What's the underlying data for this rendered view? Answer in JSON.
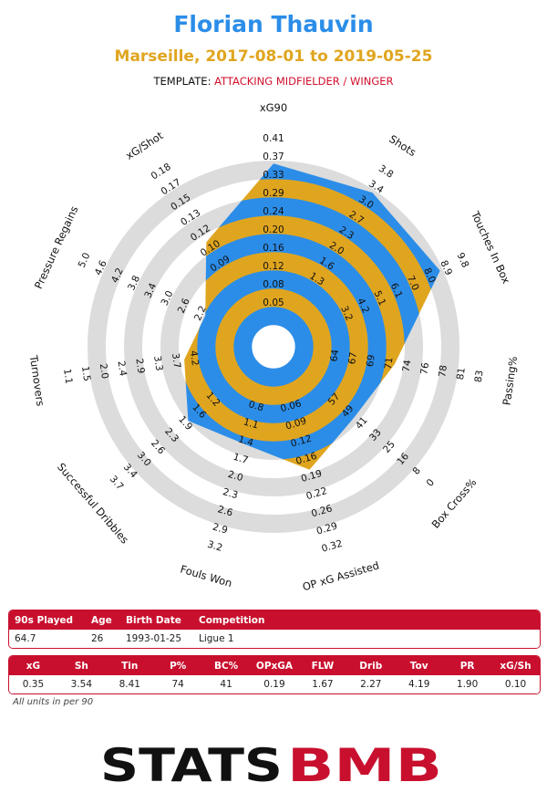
{
  "header": {
    "player_name": "Florian Thauvin",
    "team_period": "Marseille, 2017-08-01 to 2019-05-25",
    "template_label": "TEMPLATE:",
    "template_value": "ATTACKING MIDFIELDER / WINGER"
  },
  "chart_data": {
    "type": "radar",
    "colors": {
      "ring_band": "#dcdcdc",
      "player_fill_a": "#2b8de8",
      "player_fill_b": "#e0a51f"
    },
    "axes": [
      {
        "name": "xG90",
        "ticks": [
          "0.05",
          "0.08",
          "0.12",
          "0.16",
          "0.20",
          "0.24",
          "0.29",
          "0.33",
          "0.37",
          "0.41"
        ],
        "value": 0.35,
        "fraction": 0.85
      },
      {
        "name": "Shots",
        "ticks": [
          "2.3",
          "2.7",
          "3.0",
          "3.4",
          "3.8"
        ],
        "inner_ticks": [
          "1.3",
          "1.6",
          "2.0"
        ],
        "value": 3.54,
        "fraction": 0.85
      },
      {
        "name": "Touches In Box",
        "ticks": [
          "3.2",
          "4.2",
          "5.1",
          "6.1",
          "7.0",
          "8.0",
          "8.9",
          "9.8"
        ],
        "value": 8.41,
        "fraction": 0.85
      },
      {
        "name": "Passing%",
        "ticks": [
          "64",
          "67",
          "69",
          "71",
          "74",
          "76",
          "78",
          "81",
          "83"
        ],
        "value": 74,
        "fraction": 0.53
      },
      {
        "name": "Box Cross%",
        "ticks": [
          "57",
          "49",
          "41",
          "33",
          "25",
          "16",
          "8",
          "0"
        ],
        "value": 41,
        "fraction": 0.45
      },
      {
        "name": "OP xG Assisted",
        "ticks": [
          "0.06",
          "0.09",
          "0.12",
          "0.16",
          "0.19",
          "0.22",
          "0.26",
          "0.29",
          "0.32"
        ],
        "value": 0.19,
        "fraction": 0.56
      },
      {
        "name": "Fouls Won",
        "ticks": [
          "0.8",
          "1.1",
          "1.4",
          "1.7",
          "2.0",
          "2.3",
          "2.6",
          "2.9",
          "3.2"
        ],
        "value": 1.67,
        "fraction": 0.42
      },
      {
        "name": "Successful Dribbles",
        "ticks": [
          "1.2",
          "1.6",
          "1.9",
          "2.3",
          "2.6",
          "3.0",
          "3.4",
          "3.7"
        ],
        "value": 2.27,
        "fraction": 0.48
      },
      {
        "name": "Turnovers",
        "ticks": [
          "4.2",
          "3.7",
          "3.3",
          "2.9",
          "2.4",
          "2.0",
          "1.5",
          "1.1"
        ],
        "value": 4.19,
        "fraction": 0.36
      },
      {
        "name": "Pressure Regains",
        "ticks": [
          "2.2",
          "2.6",
          "3.0",
          "3.4",
          "3.8",
          "4.2",
          "4.6",
          "5.0"
        ],
        "value": 1.9,
        "fraction": 0.28
      },
      {
        "name": "xG/Shot",
        "ticks": [
          "0.09",
          "0.10",
          "0.12",
          "0.13",
          "0.15",
          "0.17",
          "0.18"
        ],
        "value": 0.1,
        "fraction": 0.54
      }
    ],
    "inner_labels": [
      {
        "axis": 0,
        "text": "0.05"
      },
      {
        "axis": 0,
        "text": "0.08"
      }
    ]
  },
  "info_table": {
    "headers": [
      "90s Played",
      "Age",
      "Birth Date",
      "Competition"
    ],
    "values": [
      "64.7",
      "26",
      "1993-01-25",
      "Ligue 1"
    ]
  },
  "stats_table": {
    "headers": [
      "xG",
      "Sh",
      "Tin",
      "P%",
      "BC%",
      "OPxGA",
      "FLW",
      "Drib",
      "Tov",
      "PR",
      "xG/Sh"
    ],
    "values": [
      "0.35",
      "3.54",
      "8.41",
      "74",
      "41",
      "0.19",
      "1.67",
      "2.27",
      "4.19",
      "1.90",
      "0.10"
    ]
  },
  "footnote": "All units in per 90",
  "logo": {
    "text_left": "STATS",
    "text_right": "BMB",
    "color_left": "#111111",
    "color_right": "#c8102e"
  }
}
